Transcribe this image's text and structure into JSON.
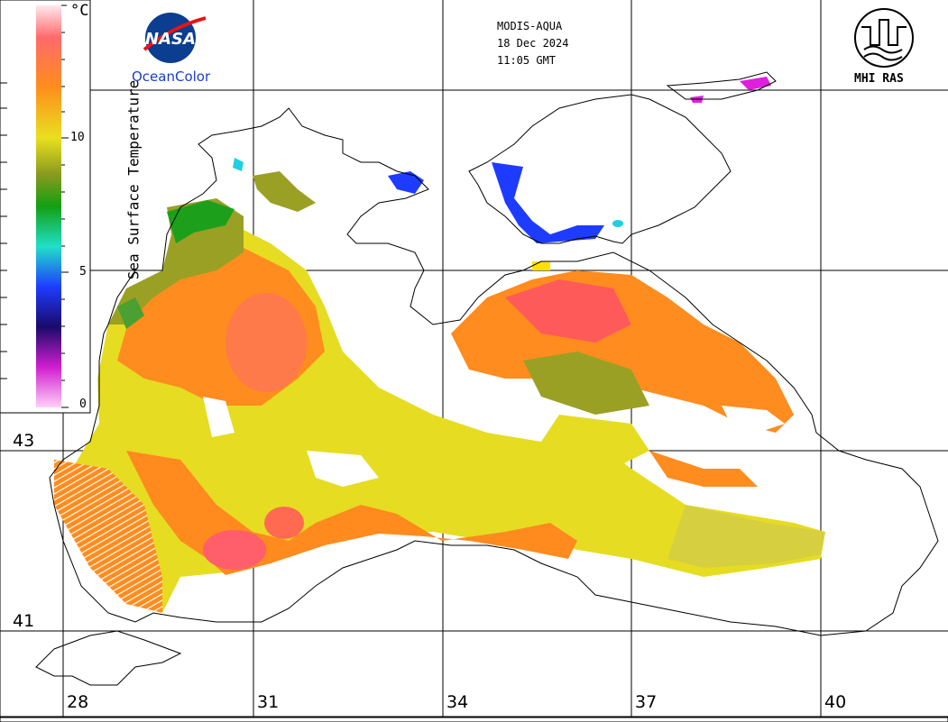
{
  "header": {
    "sensor": "MODIS-AQUA",
    "date": "18 Dec 2024",
    "time": "11:05 GMT"
  },
  "logos": {
    "nasa_text": "NASA",
    "nasa_sub": "OceanColor",
    "mhi_text": "MHI RAS"
  },
  "colorbar": {
    "title": "Sea Surface Temperature",
    "unit": "°C",
    "ticks": [
      "10",
      "5",
      "0"
    ]
  },
  "axes": {
    "longitudes": [
      "28",
      "31",
      "34",
      "37",
      "40"
    ],
    "latitudes": [
      "43",
      "41"
    ]
  },
  "colors": {
    "warm": "#ff8c1e",
    "hot": "#ff5a5a",
    "mild": "#e8dc1e",
    "olive": "#9aa024",
    "green": "#1ca01c",
    "cold": "#1e3cff",
    "magenta": "#e01ee0",
    "cyan": "#20e0e0"
  }
}
